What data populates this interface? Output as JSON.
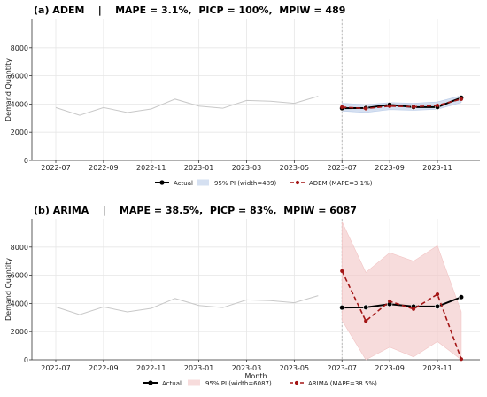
{
  "figure": {
    "xlabel_shared": "Month",
    "colors": {
      "history": "#c8c8c8",
      "actual": "#000000",
      "forecast": "#a31515",
      "band_a": "#b9cbe8",
      "band_b": "#f2c4c4",
      "grid": "#e6e6e6",
      "divider": "#aaaaaa"
    }
  },
  "chart_data": [
    {
      "type": "line",
      "title": "(a) ADEM    |    MAPE = 3.1%,  PICP = 100%,  MPIW = 489",
      "ylabel": "Demand Quantity",
      "xlabel": "",
      "ylim": [
        0,
        10000
      ],
      "yticks": [
        "0",
        "2000",
        "4000",
        "6000",
        "8000"
      ],
      "ytick_values": [
        0,
        2000,
        4000,
        6000,
        8000
      ],
      "xticks": [
        "2022-07",
        "2022-09",
        "2022-11",
        "2023-01",
        "2023-03",
        "2023-05",
        "2023-07",
        "2023-09",
        "2023-11"
      ],
      "grid": true,
      "legend_placement": "bottom",
      "history": {
        "x": [
          "2022-07",
          "2022-08",
          "2022-09",
          "2022-10",
          "2022-11",
          "2022-12",
          "2023-01",
          "2023-02",
          "2023-03",
          "2023-04",
          "2023-05",
          "2023-06"
        ],
        "values": [
          3750,
          3200,
          3750,
          3400,
          3650,
          4350,
          3850,
          3700,
          4250,
          4200,
          4050,
          4550
        ]
      },
      "x": [
        "2023-07",
        "2023-08",
        "2023-09",
        "2023-10",
        "2023-11",
        "2023-12"
      ],
      "series": [
        {
          "name": "Actual",
          "values": [
            3700,
            3720,
            3950,
            3780,
            3780,
            4450
          ]
        },
        {
          "name": "ADEM (MAPE=3.1%)",
          "values": [
            3780,
            3680,
            3850,
            3800,
            3900,
            4350
          ]
        }
      ],
      "band": {
        "name": "95% PI (width=489)",
        "lower": [
          3500,
          3400,
          3600,
          3560,
          3630,
          4100
        ],
        "upper": [
          4050,
          3950,
          4100,
          4050,
          4150,
          4600
        ]
      }
    },
    {
      "type": "line",
      "title": "(b) ARIMA    |    MAPE = 38.5%,  PICP = 83%,  MPIW = 6087",
      "ylabel": "Demand Quantity",
      "xlabel": "Month",
      "ylim": [
        0,
        10000
      ],
      "yticks": [
        "0",
        "2000",
        "4000",
        "6000",
        "8000"
      ],
      "ytick_values": [
        0,
        2000,
        4000,
        6000,
        8000
      ],
      "xticks": [
        "2022-07",
        "2022-09",
        "2022-11",
        "2023-01",
        "2023-03",
        "2023-05",
        "2023-07",
        "2023-09",
        "2023-11"
      ],
      "grid": true,
      "legend_placement": "bottom",
      "history": {
        "x": [
          "2022-07",
          "2022-08",
          "2022-09",
          "2022-10",
          "2022-11",
          "2022-12",
          "2023-01",
          "2023-02",
          "2023-03",
          "2023-04",
          "2023-05",
          "2023-06"
        ],
        "values": [
          3750,
          3200,
          3750,
          3400,
          3650,
          4350,
          3850,
          3700,
          4250,
          4200,
          4050,
          4550
        ]
      },
      "x": [
        "2023-07",
        "2023-08",
        "2023-09",
        "2023-10",
        "2023-11",
        "2023-12"
      ],
      "series": [
        {
          "name": "Actual",
          "values": [
            3700,
            3720,
            3950,
            3780,
            3780,
            4450
          ]
        },
        {
          "name": "ARIMA (MAPE=38.5%)",
          "values": [
            6300,
            2750,
            4150,
            3600,
            4650,
            50
          ]
        }
      ],
      "band": {
        "name": "95% PI (width=6087)",
        "lower": [
          2800,
          0,
          900,
          200,
          1300,
          0
        ],
        "upper": [
          9800,
          6200,
          7600,
          7000,
          8100,
          3400
        ]
      }
    }
  ]
}
